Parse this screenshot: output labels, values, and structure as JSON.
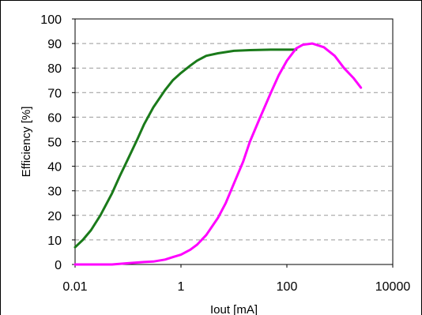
{
  "chart_data": {
    "type": "line",
    "title": "",
    "xlabel": "Iout [mA]",
    "ylabel": "Efficiency [%]",
    "xscale": "log",
    "xlim": [
      0.01,
      10000
    ],
    "ylim": [
      0,
      100
    ],
    "xticks": [
      0.01,
      1,
      100,
      10000
    ],
    "xtick_labels": [
      "0.01",
      "1",
      "100",
      "10000"
    ],
    "yticks": [
      0,
      10,
      20,
      30,
      40,
      50,
      60,
      70,
      80,
      90,
      100
    ],
    "ytick_labels": [
      "0",
      "10",
      "20",
      "30",
      "40",
      "50",
      "60",
      "70",
      "80",
      "90",
      "100"
    ],
    "grid": "horizontal dashed",
    "legend": "none",
    "series": [
      {
        "color": "#1a7a1a",
        "points": [
          [
            0.01,
            7
          ],
          [
            0.014,
            10
          ],
          [
            0.02,
            14
          ],
          [
            0.03,
            20
          ],
          [
            0.05,
            29
          ],
          [
            0.07,
            36
          ],
          [
            0.1,
            43
          ],
          [
            0.15,
            51
          ],
          [
            0.2,
            57
          ],
          [
            0.3,
            64
          ],
          [
            0.5,
            71
          ],
          [
            0.7,
            75
          ],
          [
            1,
            78
          ],
          [
            1.5,
            81
          ],
          [
            2,
            83
          ],
          [
            3,
            85
          ],
          [
            5,
            86
          ],
          [
            10,
            87
          ],
          [
            20,
            87.3
          ],
          [
            50,
            87.5
          ],
          [
            100,
            87.5
          ],
          [
            150,
            87.5
          ]
        ]
      },
      {
        "color": "#ff00ff",
        "points": [
          [
            0.01,
            0
          ],
          [
            0.05,
            0
          ],
          [
            0.1,
            0.5
          ],
          [
            0.2,
            1
          ],
          [
            0.3,
            1.2
          ],
          [
            0.5,
            2
          ],
          [
            0.7,
            3
          ],
          [
            1,
            4
          ],
          [
            1.5,
            6
          ],
          [
            2,
            8
          ],
          [
            3,
            12
          ],
          [
            5,
            19
          ],
          [
            7,
            25
          ],
          [
            10,
            33
          ],
          [
            15,
            42
          ],
          [
            20,
            50
          ],
          [
            30,
            59
          ],
          [
            50,
            70
          ],
          [
            70,
            77
          ],
          [
            100,
            83
          ],
          [
            150,
            88
          ],
          [
            200,
            89.5
          ],
          [
            300,
            90
          ],
          [
            500,
            88.5
          ],
          [
            800,
            85
          ],
          [
            1200,
            80
          ],
          [
            1800,
            76
          ],
          [
            2500,
            72
          ]
        ]
      }
    ]
  }
}
